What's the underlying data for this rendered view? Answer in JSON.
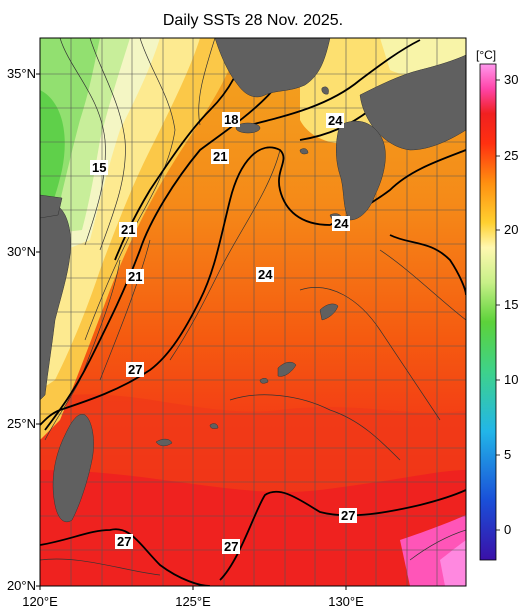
{
  "title": "Daily SSTs 28 Nov. 2025.",
  "lat_labels": [
    "35°N",
    "30°N",
    "25°N",
    "20°N"
  ],
  "lon_labels": [
    "120°E",
    "125°E",
    "130°E"
  ],
  "colorbar": {
    "unit": "[°C]",
    "ticks": [
      "30",
      "25",
      "20",
      "15",
      "10",
      "5",
      "0"
    ],
    "range": [
      -3,
      32
    ],
    "colors": [
      "#3a10a8",
      "#1a4fd8",
      "#22b6e8",
      "#3ed28a",
      "#5cd23a",
      "#c8f088",
      "#fff8b0",
      "#ffd030",
      "#ff9010",
      "#ff3010",
      "#f02020",
      "#ff44a8",
      "#ff99ee"
    ]
  },
  "contour_labels": [
    "15",
    "18",
    "21",
    "21",
    "21",
    "24",
    "24",
    "24",
    "27",
    "27",
    "27"
  ],
  "map_extent": {
    "lon": [
      120,
      134
    ],
    "lat": [
      20,
      36
    ]
  },
  "land_color": "#606060"
}
